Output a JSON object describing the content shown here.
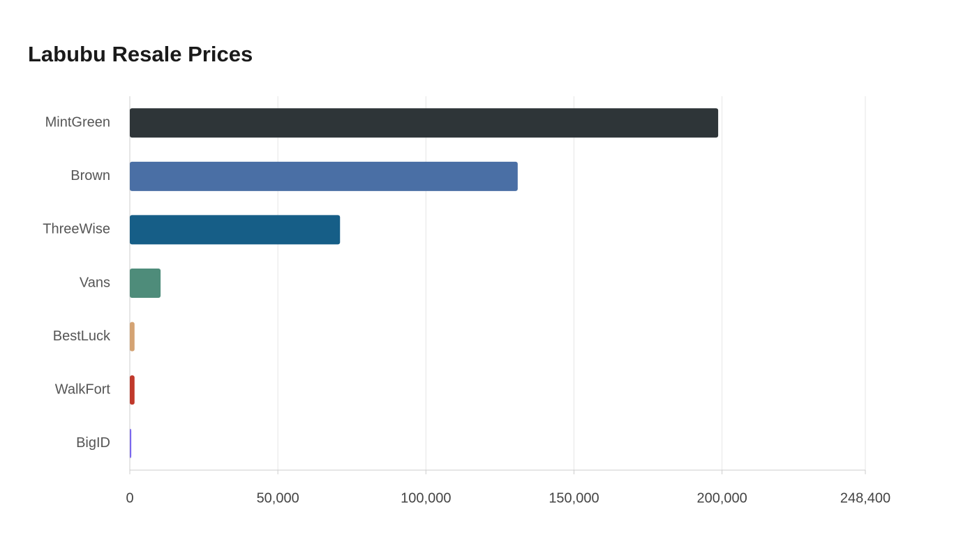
{
  "chart_data": {
    "type": "hbar",
    "title": "Labubu Resale Prices",
    "categories": [
      "MintGreen",
      "Brown",
      "ThreeWise",
      "Vans",
      "BestLuck",
      "WalkFort",
      "BigID"
    ],
    "series": [
      {
        "values": [
          198700,
          131000,
          71000,
          10400,
          1600,
          1600,
          500
        ],
        "colors": [
          "#2e3538",
          "#4a6fa5",
          "#165e87",
          "#4e8c7a",
          "#d4a373",
          "#c0392b",
          "#7b68ee"
        ]
      }
    ],
    "xlim": [
      0,
      248400
    ],
    "xticks": [
      0,
      {
        "value": 50000,
        "label": "50,000"
      },
      {
        "value": 100000,
        "label": "100,000"
      },
      {
        "value": 150000,
        "label": "150,000"
      },
      {
        "value": 200000,
        "label": "200,000"
      },
      {
        "value": 248400,
        "label": "248,400"
      }
    ],
    "grid": true
  }
}
